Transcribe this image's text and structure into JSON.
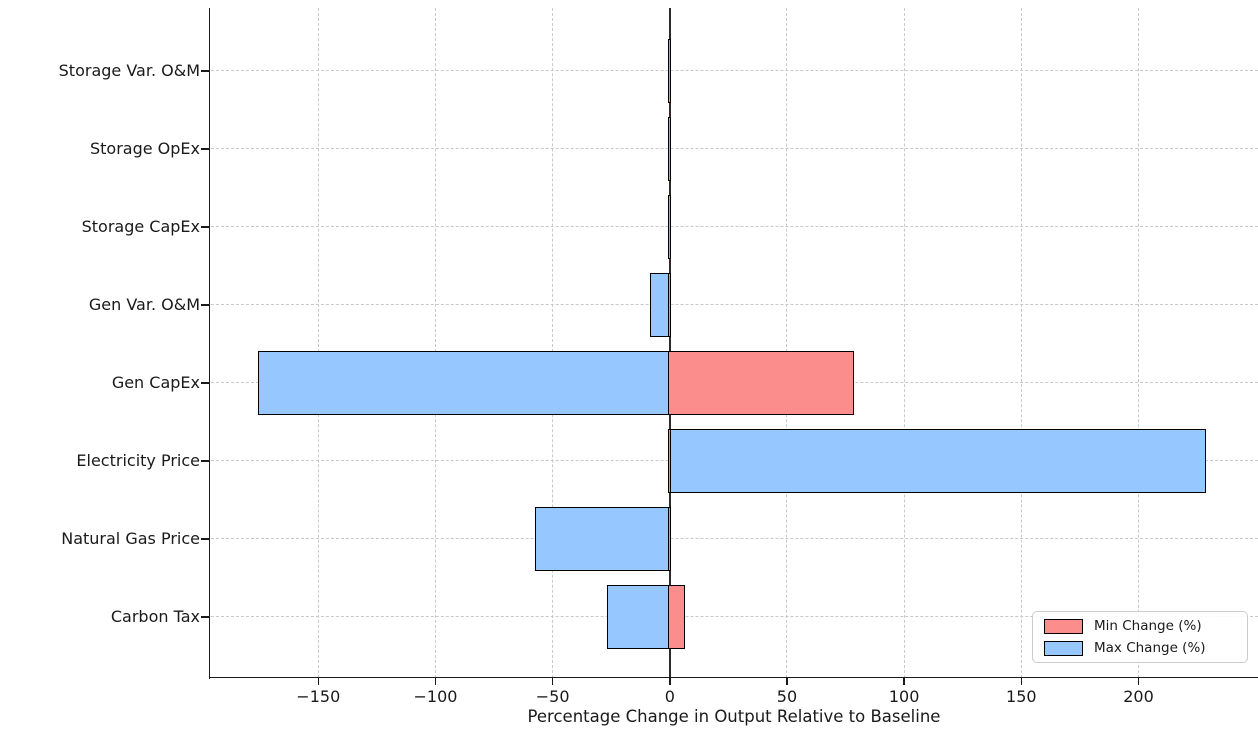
{
  "chart_data": {
    "type": "bar",
    "orientation": "horizontal",
    "title": "",
    "xlabel": "Percentage Change in Output Relative to Baseline",
    "categories": [
      "Storage Var. O&M",
      "Storage OpEx",
      "Storage CapEx",
      "Gen Var. O&M",
      "Gen CapEx",
      "Electricity Price",
      "Natural Gas Price",
      "Carbon Tax"
    ],
    "series": [
      {
        "name": "Min Change (%)",
        "color": "#fc8d8d",
        "values": [
          0,
          0,
          0,
          0,
          78,
          0,
          0,
          6
        ]
      },
      {
        "name": "Max Change (%)",
        "color": "#96c8ff",
        "values": [
          0,
          0,
          0,
          -8,
          -175,
          228,
          -57,
          -26
        ]
      }
    ],
    "xlim": [
      -196,
      251
    ],
    "xticks": [
      -150,
      -100,
      -50,
      0,
      50,
      100,
      150,
      200
    ],
    "xtick_labels": [
      "−150",
      "−100",
      "−50",
      "0",
      "50",
      "100",
      "150",
      "200"
    ],
    "grid": "dashed horizontal and vertical gridlines",
    "zero_line": true,
    "legend_position": "lower right",
    "bar_edge_color": "#000000",
    "background_color": "#ffffff"
  }
}
